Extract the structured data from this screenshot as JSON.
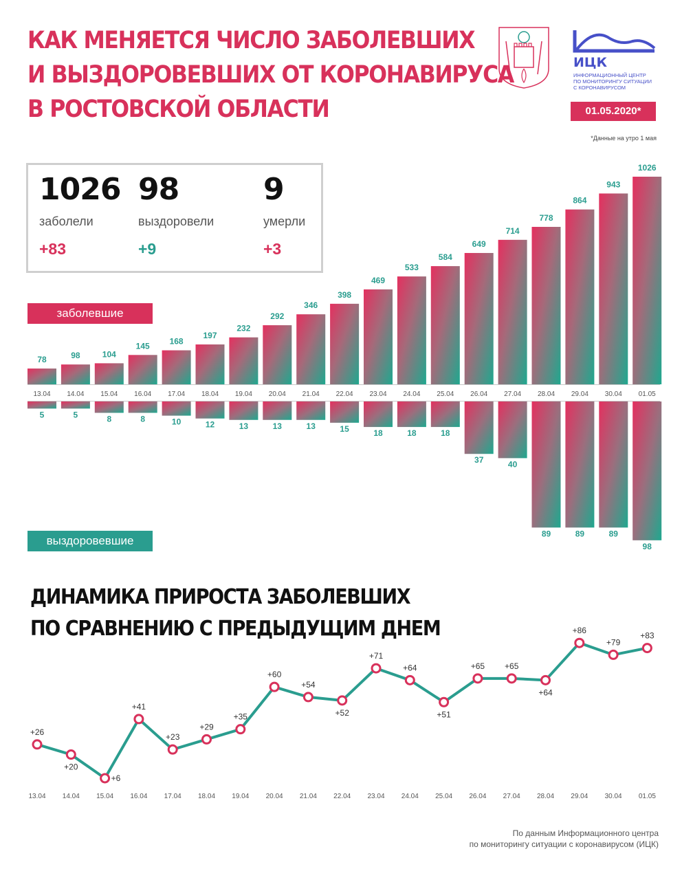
{
  "header": {
    "title_lines": [
      "КАК МЕНЯЕТСЯ ЧИСЛО ЗАБОЛЕВШИХ",
      "И ВЫЗДОРОВЕВШИХ ОТ КОРОНАВИРУСА",
      "В РОСТОВСКОЙ ОБЛАСТИ"
    ],
    "logo_name": "ИЦК",
    "logo_sub_lines": [
      "Информационный центр",
      "по мониторингу ситуации",
      "с коронавирусом"
    ],
    "date": "01.05.2020*",
    "footnote": "*Данные на утро 1 мая"
  },
  "summary": {
    "sick": {
      "value": "1026",
      "label": "заболели",
      "delta": "+83"
    },
    "recovered": {
      "value": "98",
      "label": "выздоровели",
      "delta": "+9"
    },
    "dead": {
      "value": "9",
      "label": "умерли",
      "delta": "+3"
    }
  },
  "colors": {
    "pink": "#d8315b",
    "green": "#2a9d8f",
    "gray": "#c8c8c8"
  },
  "chart_data": [
    {
      "type": "bar",
      "categories": [
        "13.04",
        "14.04",
        "15.04",
        "16.04",
        "17.04",
        "18.04",
        "19.04",
        "20.04",
        "21.04",
        "22.04",
        "23.04",
        "24.04",
        "25.04",
        "26.04",
        "27.04",
        "28.04",
        "29.04",
        "30.04",
        "01.05"
      ],
      "series": [
        {
          "name": "заболевшие",
          "values": [
            78,
            98,
            104,
            145,
            168,
            197,
            232,
            292,
            346,
            398,
            469,
            533,
            584,
            649,
            714,
            778,
            864,
            943,
            1026
          ]
        },
        {
          "name": "выздоровевшие",
          "values": [
            5,
            5,
            8,
            8,
            10,
            12,
            13,
            13,
            13,
            15,
            18,
            18,
            18,
            37,
            40,
            89,
            89,
            89,
            98
          ]
        }
      ]
    },
    {
      "type": "line",
      "title_lines": [
        "ДИНАМИКА ПРИРОСТА ЗАБОЛЕВШИХ",
        "ПО СРАВНЕНИЮ С ПРЕДЫДУЩИМ ДНЕМ"
      ],
      "x": [
        "13.04",
        "14.04",
        "15.04",
        "16.04",
        "17.04",
        "18.04",
        "19.04",
        "20.04",
        "21.04",
        "22.04",
        "23.04",
        "24.04",
        "25.04",
        "26.04",
        "27.04",
        "28.04",
        "29.04",
        "30.04",
        "01.05"
      ],
      "y": [
        26,
        20,
        6,
        41,
        23,
        29,
        35,
        60,
        54,
        52,
        71,
        64,
        51,
        65,
        65,
        64,
        86,
        79,
        83
      ],
      "labels": [
        "+26",
        "+20",
        "+6",
        "+41",
        "+23",
        "+29",
        "+35",
        "+60",
        "+54",
        "+52",
        "+71",
        "+64",
        "+51",
        "+65",
        "+65",
        "+64",
        "+86",
        "+79",
        "+83"
      ],
      "label_positions": [
        "above",
        "below",
        "right",
        "above",
        "above",
        "above",
        "above",
        "above",
        "above",
        "below",
        "above",
        "above",
        "below",
        "above",
        "above",
        "below",
        "above",
        "above",
        "above"
      ]
    }
  ],
  "source_lines": [
    "По данным Информационного центра",
    "по мониторингу ситуации с коронавирусом (ИЦК)"
  ]
}
